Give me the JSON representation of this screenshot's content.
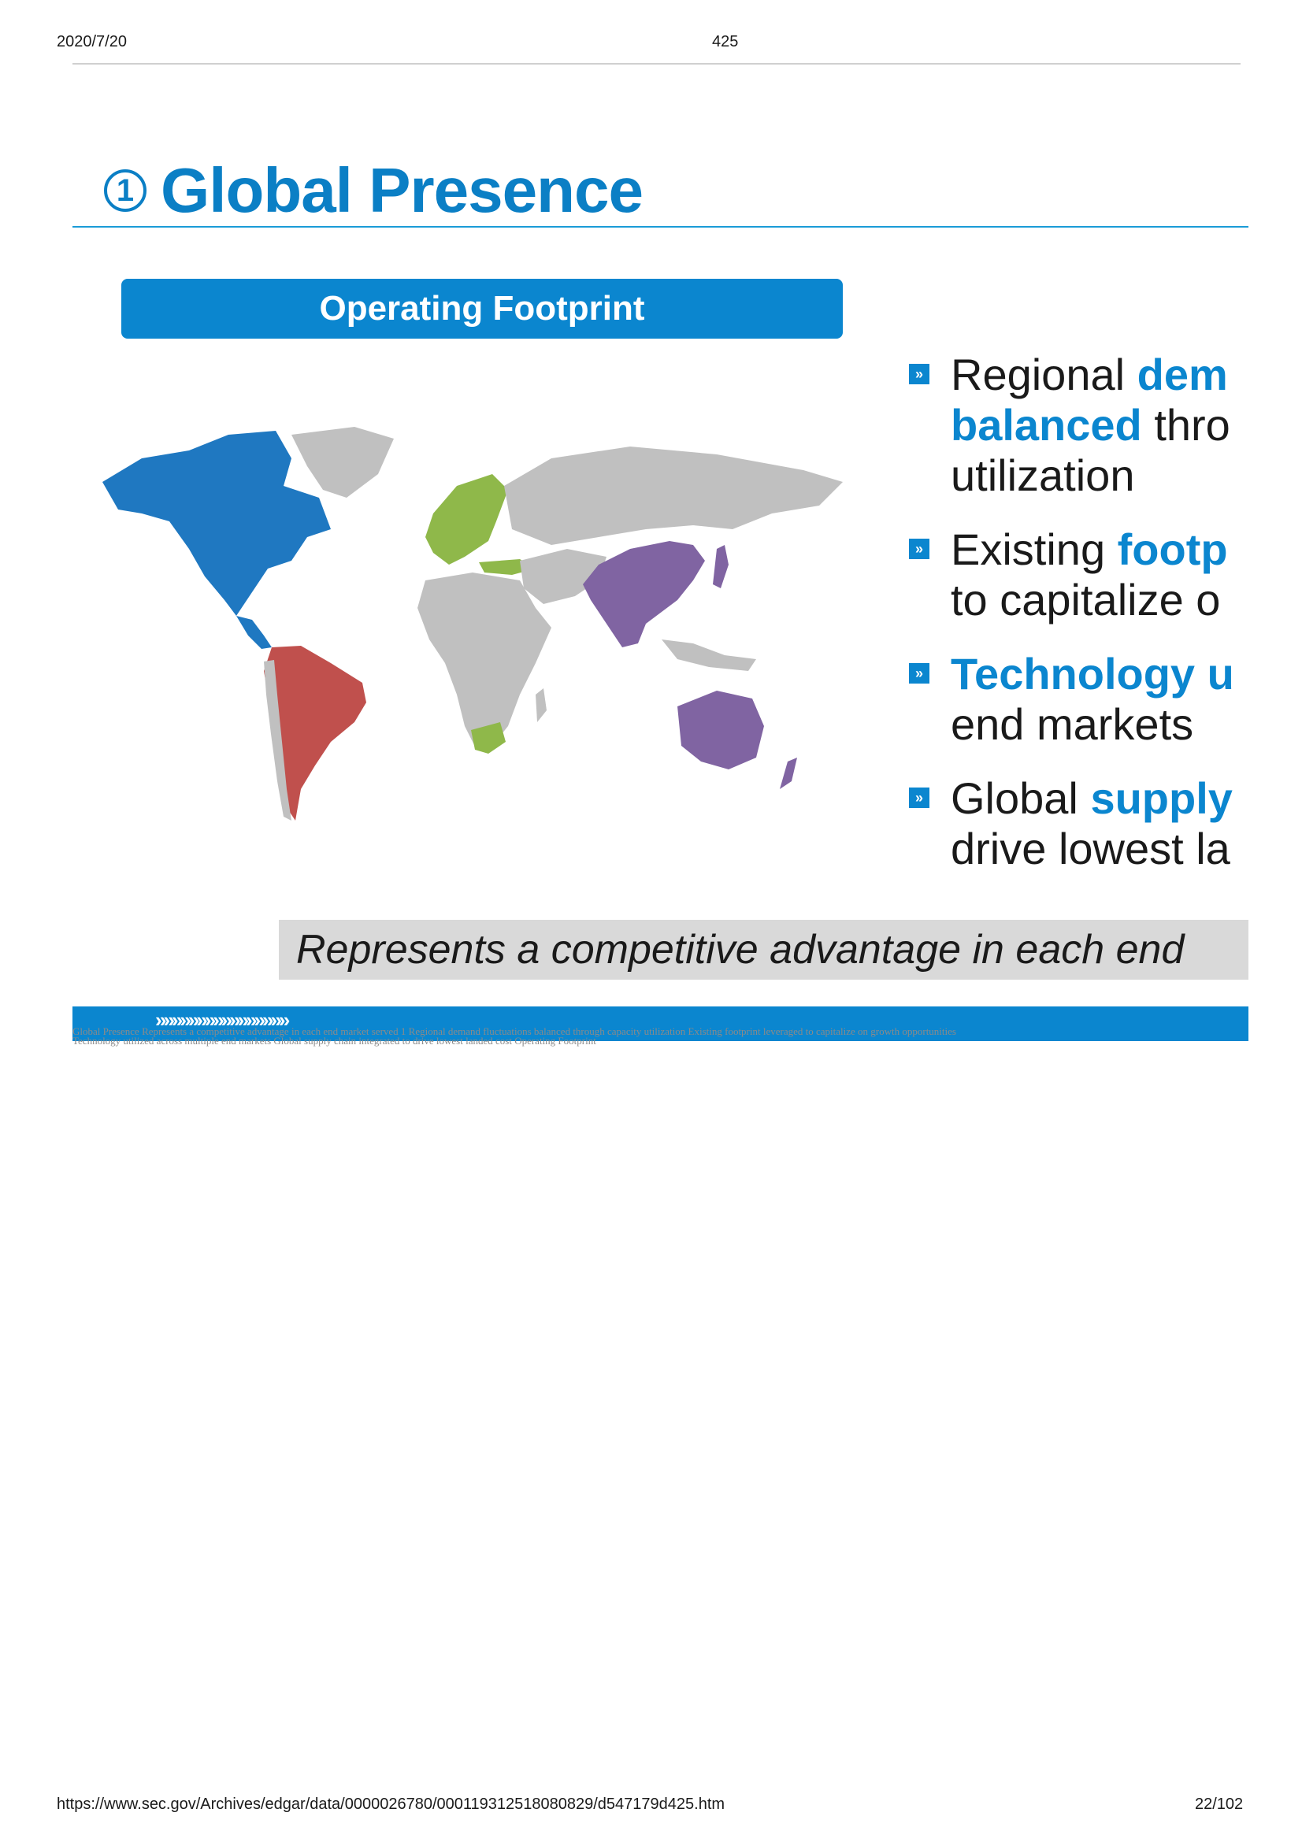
{
  "header": {
    "date": "2020/7/20",
    "page": "425"
  },
  "slide": {
    "number": "1",
    "title": "Global Presence",
    "footprint_label": "Operating Footprint",
    "bullets": [
      {
        "line1_a": "Regional ",
        "line1_b": "dem",
        "line2_a": "balanced",
        "line2_b": " thro",
        "line3": "utilization"
      },
      {
        "line1_a": "Existing ",
        "line1_b": "footp",
        "line2": "to capitalize o"
      },
      {
        "line1": "Technology u",
        "line2": "end markets"
      },
      {
        "line1_a": "Global ",
        "line1_b": "supply",
        "line2": "drive lowest la"
      }
    ],
    "advantage": "Represents a competitive advantage in each end",
    "chevrons": "»»»»»»»»»»»»»»»»",
    "alt_text_1": "Global Presence Represents a competitive advantage in each end market served 1 Regional demand fluctuations balanced through capacity utilization Existing footprint leveraged to capitalize on growth opportunities",
    "alt_text_2": "Technology utilized across multiple end markets Global supply chain integrated to drive lowest landed cost Operating Footprint"
  },
  "map_legend_colors": {
    "north_america": "#1f78c1",
    "south_america": "#c0504d",
    "europe_africa_south": "#8fb84a",
    "asia_pacific": "#8064a2",
    "other": "#c0c0c0"
  },
  "footer": {
    "url": "https://www.sec.gov/Archives/edgar/data/0000026780/000119312518080829/d547179d425.htm",
    "page": "22/102"
  }
}
